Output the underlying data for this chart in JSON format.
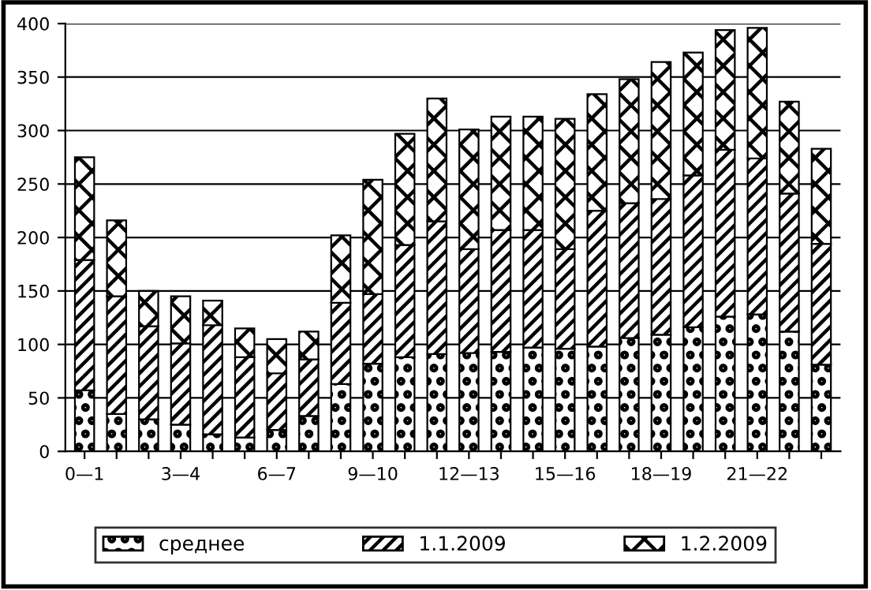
{
  "chart_data": {
    "type": "bar",
    "stacked": true,
    "categories": [
      "0—1",
      null,
      null,
      "3—4",
      null,
      null,
      "6—7",
      null,
      null,
      "9—10",
      null,
      null,
      "12—13",
      null,
      null,
      "15—16",
      null,
      null,
      "18—19",
      null,
      null,
      "21—22",
      null,
      null
    ],
    "series": [
      {
        "name": "среднее",
        "color": "#000000",
        "values": [
          57,
          35,
          30,
          25,
          16,
          13,
          20,
          33,
          63,
          82,
          88,
          91,
          92,
          93,
          97,
          96,
          98,
          106,
          109,
          116,
          126,
          128,
          112,
          81
        ]
      },
      {
        "name": "1.1.2009",
        "color": "#000000",
        "values": [
          122,
          110,
          87,
          76,
          102,
          75,
          53,
          53,
          76,
          65,
          105,
          124,
          97,
          114,
          110,
          93,
          127,
          126,
          127,
          142,
          156,
          146,
          129,
          113
        ]
      },
      {
        "name": "1.2.2009",
        "color": "#000000",
        "values": [
          96,
          71,
          33,
          44,
          23,
          27,
          32,
          26,
          63,
          107,
          104,
          115,
          112,
          106,
          106,
          122,
          109,
          116,
          128,
          115,
          112,
          122,
          86,
          89
        ]
      }
    ],
    "ylim": [
      0,
      400
    ],
    "yticks": [
      0,
      50,
      100,
      150,
      200,
      250,
      300,
      350,
      400
    ],
    "grid": "y",
    "legend": "bottom"
  }
}
